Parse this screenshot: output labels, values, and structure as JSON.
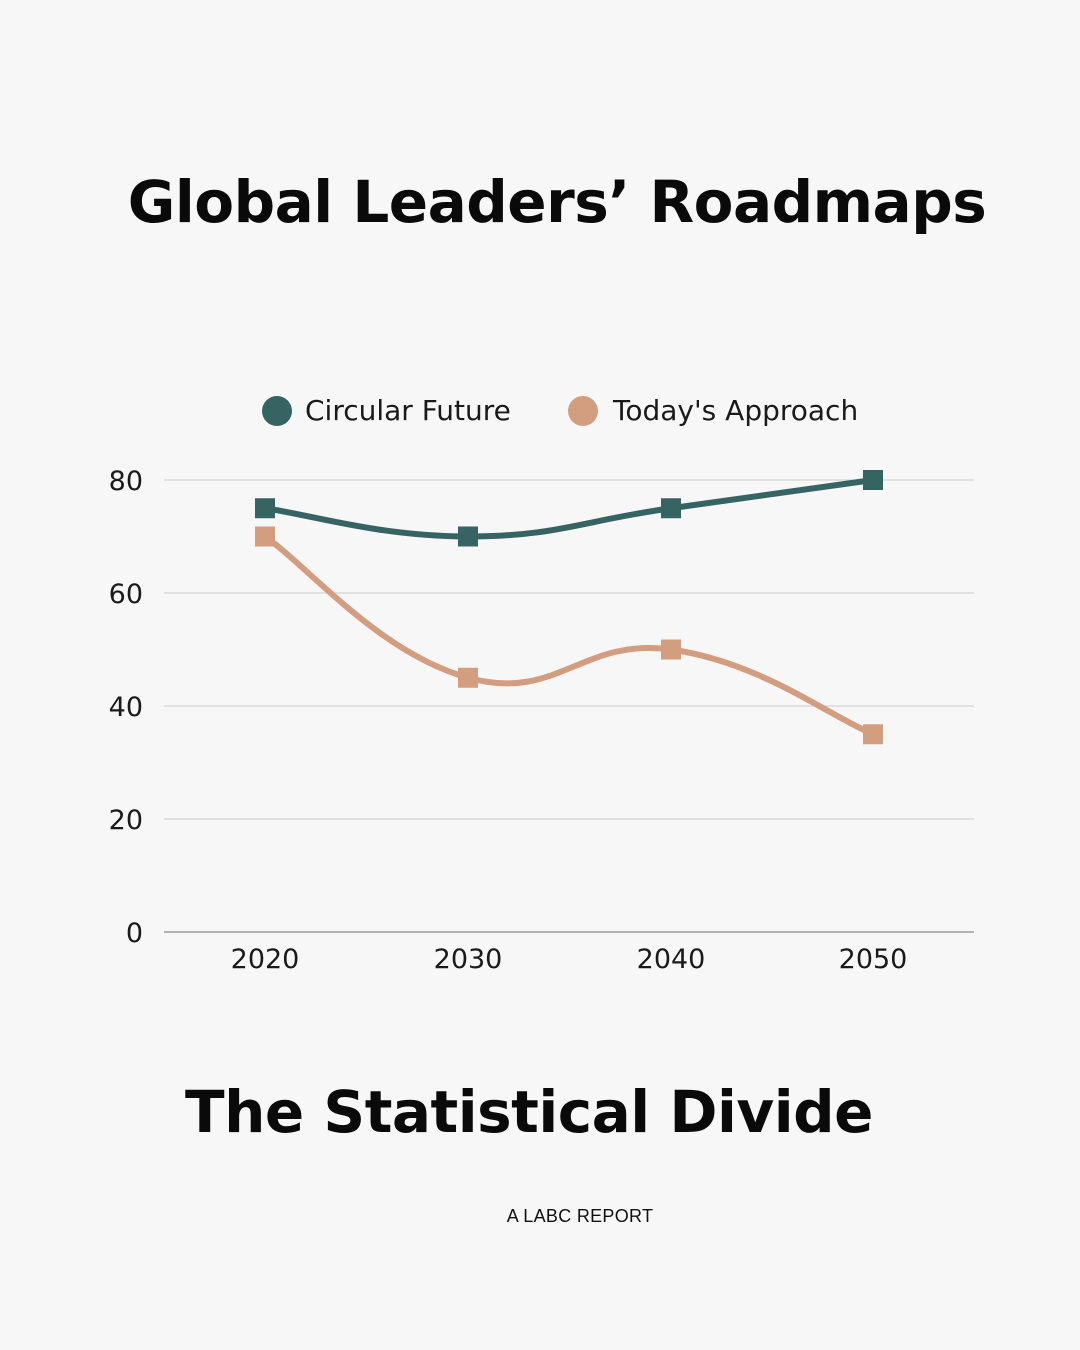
{
  "header": {
    "title": "Global Leaders’ Roadmaps"
  },
  "footer": {
    "subtitle": "The Statistical Divide",
    "report_label": "A LABC REPORT"
  },
  "colors": {
    "background": "#f7f7f7",
    "circular_future": "#366463",
    "todays_approach": "#d39d80",
    "gridline": "#d4d4d4",
    "axis": "#9a9a9a"
  },
  "chart_data": {
    "type": "line",
    "title": "",
    "xlabel": "",
    "ylabel": "",
    "categories": [
      "2020",
      "2030",
      "2040",
      "2050"
    ],
    "ylim": [
      0,
      80
    ],
    "yticks": [
      0,
      20,
      40,
      60,
      80
    ],
    "grid": true,
    "legend_position": "top-center",
    "smooth": true,
    "marker": "square",
    "series": [
      {
        "name": "Circular Future",
        "values": [
          75,
          70,
          75,
          80
        ],
        "color": "#366463"
      },
      {
        "name": "Today's Approach",
        "values": [
          70,
          45,
          50,
          35
        ],
        "color": "#d39d80"
      }
    ]
  }
}
